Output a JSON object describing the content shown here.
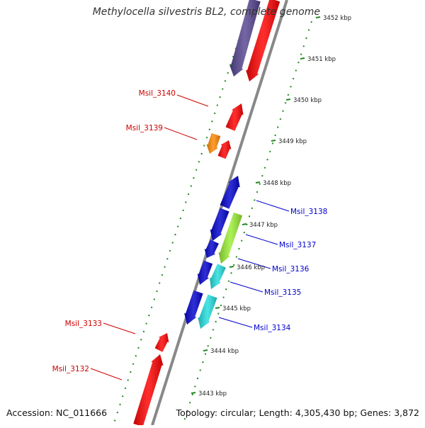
{
  "title": "Methylocella silvestris BL2, complete genome",
  "accession": "Accession: NC_011666",
  "topology": "Topology: circular; Length: 4,305,430 bp; Genes: 3,872",
  "ticks": [
    "3452 kbp",
    "3451 kbp",
    "3450 kbp",
    "3449 kbp",
    "3448 kbp",
    "3447 kbp",
    "3446 kbp",
    "3445 kbp",
    "3444 kbp",
    "3443 kbp"
  ],
  "gene_labels": [
    "Msil_3140",
    "Msil_3139",
    "Msil_3138",
    "Msil_3137",
    "Msil_3136",
    "Msil_3135",
    "Msil_3134",
    "Msil_3133",
    "Msil_3132"
  ],
  "colors": {
    "red": "#ff0000",
    "blue": "#0000cc",
    "purple": "#55448f",
    "orange": "#ff8800",
    "lime": "#99ee33",
    "cyan": "#22dddd",
    "dotted_green": "#228822",
    "backbone": "#888888",
    "label_red": "#cc0000",
    "label_blue": "#0000cc"
  }
}
